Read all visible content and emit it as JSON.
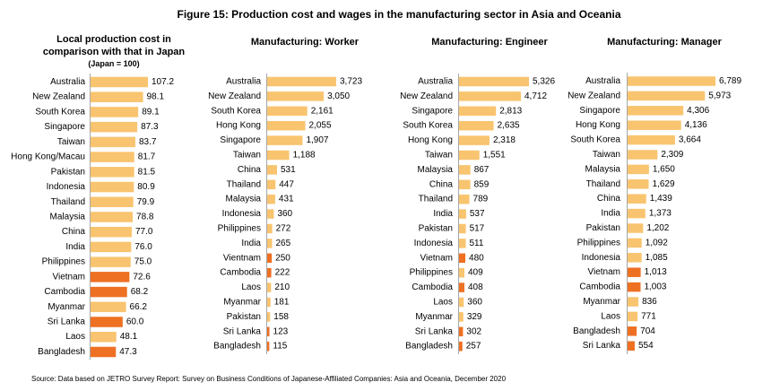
{
  "figure": {
    "title": "Figure 15: Production cost and wages in the manufacturing sector in Asia and Oceania",
    "source": "Source: Data based on JETRO Survey Report: Survey on Business Conditions of Japanese-Affiliated Companies: Asia and Oceania, December 2020"
  },
  "colors": {
    "bar": "#F9C46F",
    "highlight": "#EE7023",
    "axis": "#A6A6A6",
    "text": "#000000"
  },
  "chart_data": [
    {
      "type": "bar",
      "orientation": "horizontal",
      "title": "Local production cost in comparison with that in Japan",
      "subtitle": "(Japan = 100)",
      "categories": [
        "Australia",
        "New Zealand",
        "South Korea",
        "Singapore",
        "Taiwan",
        "Hong Kong/Macau",
        "Pakistan",
        "Indonesia",
        "Thailand",
        "Malaysia",
        "China",
        "India",
        "Philippines",
        "Vietnam",
        "Cambodia",
        "Myanmar",
        "Sri Lanka",
        "Laos",
        "Bangladesh"
      ],
      "values": [
        107.2,
        98.1,
        89.1,
        87.3,
        83.7,
        81.7,
        81.5,
        80.9,
        79.9,
        78.8,
        77.0,
        76.0,
        75.0,
        72.6,
        68.2,
        66.2,
        60.0,
        48.1,
        47.3
      ],
      "data_labels": [
        "107.2",
        "98.1",
        "89.1",
        "87.3",
        "83.7",
        "81.7",
        "81.5",
        "80.9",
        "79.9",
        "78.8",
        "77.0",
        "76.0",
        "75.0",
        "72.6",
        "68.2",
        "66.2",
        "60.0",
        "48.1",
        "47.3"
      ],
      "highlight": [
        false,
        false,
        false,
        false,
        false,
        false,
        false,
        false,
        false,
        false,
        false,
        false,
        false,
        true,
        true,
        false,
        true,
        false,
        true
      ],
      "grid": false,
      "legend": "none"
    },
    {
      "type": "bar",
      "orientation": "horizontal",
      "title": "Manufacturing: Worker",
      "categories": [
        "Australia",
        "New Zealand",
        "South Korea",
        "Hong Kong",
        "Singapore",
        "Taiwan",
        "China",
        "Thailand",
        "Malaysia",
        "Indonesia",
        "Philippines",
        "India",
        "Vientnam",
        "Cambodia",
        "Laos",
        "Myanmar",
        "Pakistan",
        "Sri Lanka",
        "Bangladesh"
      ],
      "values": [
        3723,
        3050,
        2161,
        2055,
        1907,
        1188,
        531,
        447,
        431,
        360,
        272,
        265,
        250,
        222,
        210,
        181,
        158,
        123,
        115
      ],
      "data_labels": [
        "3,723",
        "3,050",
        "2,161",
        "2,055",
        "1,907",
        "1,188",
        "531",
        "447",
        "431",
        "360",
        "272",
        "265",
        "250",
        "222",
        "210",
        "181",
        "158",
        "123",
        "115"
      ],
      "highlight": [
        false,
        false,
        false,
        false,
        false,
        false,
        false,
        false,
        false,
        false,
        false,
        false,
        true,
        true,
        false,
        false,
        false,
        true,
        true
      ],
      "grid": false,
      "legend": "none"
    },
    {
      "type": "bar",
      "orientation": "horizontal",
      "title": "Manufacturing: Engineer",
      "categories": [
        "Australia",
        "New Zealand",
        "Singapore",
        "South Korea",
        "Hong Kong",
        "Taiwan",
        "Malaysia",
        "China",
        "Thailand",
        "India",
        "Pakistan",
        "Indonesia",
        "Vietnam",
        "Philippines",
        "Cambodia",
        "Laos",
        "Myanmar",
        "Sri Lanka",
        "Bangladesh"
      ],
      "values": [
        5326,
        4712,
        2813,
        2635,
        2318,
        1551,
        867,
        859,
        789,
        537,
        517,
        511,
        480,
        409,
        408,
        360,
        329,
        302,
        257
      ],
      "data_labels": [
        "5,326",
        "4,712",
        "2,813",
        "2,635",
        "2,318",
        "1,551",
        "867",
        "859",
        "789",
        "537",
        "517",
        "511",
        "480",
        "409",
        "408",
        "360",
        "329",
        "302",
        "257"
      ],
      "highlight": [
        false,
        false,
        false,
        false,
        false,
        false,
        false,
        false,
        false,
        false,
        false,
        false,
        true,
        false,
        true,
        false,
        false,
        true,
        true
      ],
      "grid": false,
      "legend": "none"
    },
    {
      "type": "bar",
      "orientation": "horizontal",
      "title": "Manufacturing: Manager",
      "categories": [
        "Australia",
        "New Zealand",
        "Singapore",
        "Hong Kong",
        "South Korea",
        "Taiwan",
        "Malaysia",
        "Thailand",
        "China",
        "India",
        "Pakistan",
        "Philippines",
        "Indonesia",
        "Vietnam",
        "Cambodia",
        "Myanmar",
        "Laos",
        "Bangladesh",
        "Sri Lanka"
      ],
      "values": [
        6789,
        5973,
        4306,
        4136,
        3664,
        2309,
        1650,
        1629,
        1439,
        1373,
        1202,
        1092,
        1085,
        1013,
        1003,
        836,
        771,
        704,
        554
      ],
      "data_labels": [
        "6,789",
        "5,973",
        "4,306",
        "4,136",
        "3,664",
        "2,309",
        "1,650",
        "1,629",
        "1,439",
        "1,373",
        "1,202",
        "1,092",
        "1,085",
        "1,013",
        "1,003",
        "836",
        "771",
        "704",
        "554"
      ],
      "highlight": [
        false,
        false,
        false,
        false,
        false,
        false,
        false,
        false,
        false,
        false,
        false,
        false,
        false,
        true,
        true,
        false,
        false,
        true,
        true
      ],
      "grid": false,
      "legend": "none"
    }
  ]
}
